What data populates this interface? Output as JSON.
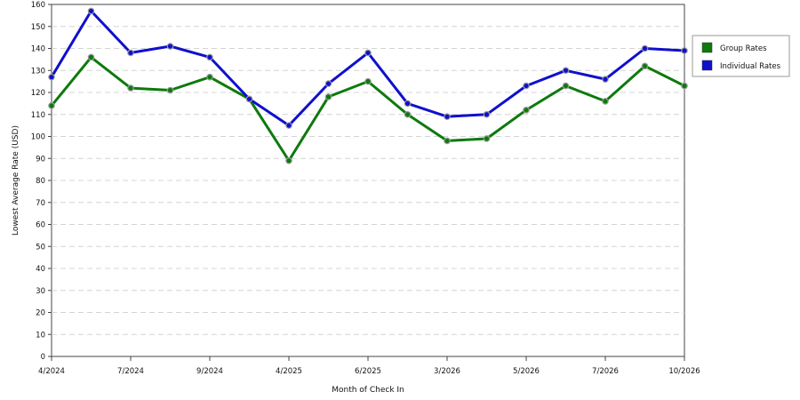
{
  "chart_data": {
    "type": "line",
    "xlabel": "Month of Check In",
    "ylabel": "Lowest Average Rate (USD)",
    "ylim": [
      0,
      160
    ],
    "yticks": [
      0,
      10,
      20,
      30,
      40,
      50,
      60,
      70,
      80,
      90,
      100,
      110,
      120,
      130,
      140,
      150,
      160
    ],
    "x_tick_labels": [
      "4/2024",
      "7/2024",
      "9/2024",
      "4/2025",
      "6/2025",
      "3/2026",
      "5/2026",
      "7/2026",
      "10/2026"
    ],
    "grid": true,
    "legend_position": "right",
    "series": [
      {
        "name": "Group Rates",
        "color": "#0d7a0d",
        "values": [
          114,
          136,
          122,
          121,
          127,
          117,
          89,
          118,
          125,
          110,
          98,
          99,
          112,
          123,
          116,
          132,
          123
        ]
      },
      {
        "name": "Individual Rates",
        "color": "#1010cc",
        "values": [
          127,
          157,
          138,
          141,
          136,
          117,
          105,
          124,
          138,
          115,
          109,
          110,
          123,
          130,
          126,
          140,
          139
        ]
      }
    ]
  }
}
